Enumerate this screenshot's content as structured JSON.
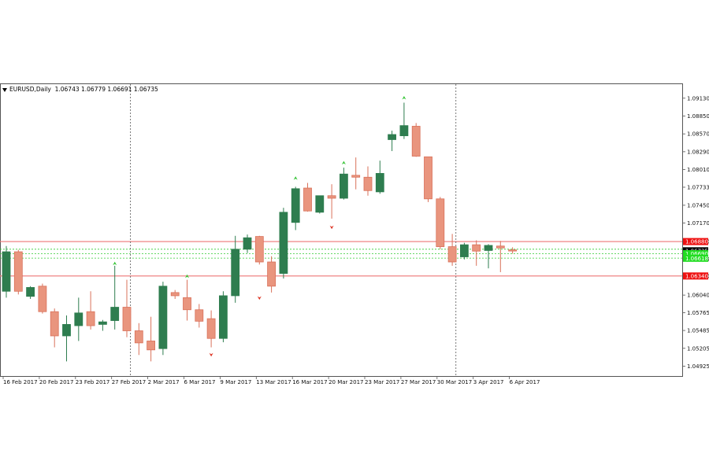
{
  "header": {
    "symbol_timeframe": "EURUSD,Daily",
    "ohlc": "1.06743 1.06779 1.06691 1.06735"
  },
  "colors": {
    "bull": "#2e7d4f",
    "bear": "#e9957e",
    "bear_border": "#d9715a",
    "resistance": "#ee7777",
    "support_line": "#ee7777",
    "green_dotted": "#33cc33",
    "grid_marker": "#555555",
    "up_arrow": "#35c435",
    "down_arrow": "#dd3322",
    "label_red": "#ee1111",
    "label_green": "#22dd22",
    "label_black": "#000000"
  },
  "chart_data": {
    "type": "candlestick",
    "title": "EURUSD,Daily",
    "ylim": [
      1.0477,
      1.0935
    ],
    "y_ticks": [
      "1.09130",
      "1.08850",
      "1.08570",
      "1.08290",
      "1.08010",
      "1.07733",
      "1.07450",
      "1.07170",
      "1.06880",
      "1.06605",
      "1.06340",
      "1.06040",
      "1.05765",
      "1.05485",
      "1.05205",
      "1.04925"
    ],
    "x_tick_labels": [
      "16 Feb 2017",
      "20 Feb 2017",
      "23 Feb 2017",
      "27 Feb 2017",
      "2 Mar 2017",
      "6 Mar 2017",
      "9 Mar 2017",
      "13 Mar 2017",
      "16 Mar 2017",
      "20 Mar 2017",
      "23 Mar 2017",
      "27 Mar 2017",
      "30 Mar 2017",
      "3 Apr 2017",
      "6 Apr 2017"
    ],
    "x_tick_bar_index": [
      0,
      3,
      6,
      9,
      12,
      15,
      18,
      21,
      24,
      27,
      30,
      33,
      36,
      39,
      42
    ],
    "candles": [
      {
        "o": 1.061,
        "h": 1.0681,
        "l": 1.06,
        "c": 1.0672
      },
      {
        "o": 1.0672,
        "h": 1.0675,
        "l": 1.0605,
        "c": 1.061
      },
      {
        "o": 1.0602,
        "h": 1.0618,
        "l": 1.0598,
        "c": 1.0616
      },
      {
        "o": 1.0618,
        "h": 1.0622,
        "l": 1.0575,
        "c": 1.0578
      },
      {
        "o": 1.0578,
        "h": 1.0583,
        "l": 1.0522,
        "c": 1.054
      },
      {
        "o": 1.054,
        "h": 1.0572,
        "l": 1.05,
        "c": 1.0558
      },
      {
        "o": 1.0556,
        "h": 1.06,
        "l": 1.0532,
        "c": 1.0576
      },
      {
        "o": 1.0578,
        "h": 1.061,
        "l": 1.055,
        "c": 1.0556
      },
      {
        "o": 1.0558,
        "h": 1.0565,
        "l": 1.0548,
        "c": 1.0562
      },
      {
        "o": 1.0564,
        "h": 1.065,
        "l": 1.055,
        "c": 1.0585
      },
      {
        "o": 1.0585,
        "h": 1.0628,
        "l": 1.0538,
        "c": 1.0548
      },
      {
        "o": 1.0548,
        "h": 1.056,
        "l": 1.051,
        "c": 1.0529
      },
      {
        "o": 1.0532,
        "h": 1.057,
        "l": 1.05,
        "c": 1.0518
      },
      {
        "o": 1.052,
        "h": 1.0625,
        "l": 1.051,
        "c": 1.0618
      },
      {
        "o": 1.0608,
        "h": 1.0612,
        "l": 1.0598,
        "c": 1.0603
      },
      {
        "o": 1.06,
        "h": 1.0628,
        "l": 1.0564,
        "c": 1.0581
      },
      {
        "o": 1.0581,
        "h": 1.059,
        "l": 1.0553,
        "c": 1.0563
      },
      {
        "o": 1.0567,
        "h": 1.058,
        "l": 1.0522,
        "c": 1.0536
      },
      {
        "o": 1.0536,
        "h": 1.061,
        "l": 1.053,
        "c": 1.0603
      },
      {
        "o": 1.0603,
        "h": 1.0697,
        "l": 1.0592,
        "c": 1.0676
      },
      {
        "o": 1.0676,
        "h": 1.0699,
        "l": 1.067,
        "c": 1.0694
      },
      {
        "o": 1.0696,
        "h": 1.0697,
        "l": 1.0652,
        "c": 1.0656
      },
      {
        "o": 1.0656,
        "h": 1.0665,
        "l": 1.0608,
        "c": 1.0618
      },
      {
        "o": 1.0638,
        "h": 1.0741,
        "l": 1.063,
        "c": 1.0734
      },
      {
        "o": 1.0718,
        "h": 1.0774,
        "l": 1.0706,
        "c": 1.0771
      },
      {
        "o": 1.0772,
        "h": 1.078,
        "l": 1.0735,
        "c": 1.0736
      },
      {
        "o": 1.0734,
        "h": 1.076,
        "l": 1.0732,
        "c": 1.076
      },
      {
        "o": 1.076,
        "h": 1.0778,
        "l": 1.0724,
        "c": 1.0756
      },
      {
        "o": 1.0756,
        "h": 1.0804,
        "l": 1.0754,
        "c": 1.0794
      },
      {
        "o": 1.0792,
        "h": 1.082,
        "l": 1.077,
        "c": 1.0789
      },
      {
        "o": 1.0789,
        "h": 1.0806,
        "l": 1.076,
        "c": 1.0768
      },
      {
        "o": 1.0766,
        "h": 1.0815,
        "l": 1.0763,
        "c": 1.0795
      },
      {
        "o": 1.0848,
        "h": 1.0862,
        "l": 1.083,
        "c": 1.0856
      },
      {
        "o": 1.0854,
        "h": 1.0906,
        "l": 1.0849,
        "c": 1.087
      },
      {
        "o": 1.0869,
        "h": 1.0874,
        "l": 1.0821,
        "c": 1.0822
      },
      {
        "o": 1.0821,
        "h": 1.0821,
        "l": 1.075,
        "c": 1.0755
      },
      {
        "o": 1.0755,
        "h": 1.0758,
        "l": 1.0676,
        "c": 1.068
      },
      {
        "o": 1.068,
        "h": 1.07,
        "l": 1.065,
        "c": 1.0656
      },
      {
        "o": 1.0664,
        "h": 1.0686,
        "l": 1.066,
        "c": 1.0683
      },
      {
        "o": 1.0683,
        "h": 1.069,
        "l": 1.065,
        "c": 1.0673
      },
      {
        "o": 1.0674,
        "h": 1.0684,
        "l": 1.0646,
        "c": 1.0682
      },
      {
        "o": 1.0681,
        "h": 1.0689,
        "l": 1.064,
        "c": 1.0678
      },
      {
        "o": 1.0675,
        "h": 1.0679,
        "l": 1.0669,
        "c": 1.0674
      }
    ],
    "horizontal_lines": [
      {
        "value": 1.0688,
        "style": "solid",
        "color_key": "resistance"
      },
      {
        "value": 1.0634,
        "style": "solid",
        "color_key": "support_line"
      },
      {
        "value": 1.0676,
        "style": "dotted",
        "color_key": "green_dotted"
      },
      {
        "value": 1.0669,
        "style": "dotted",
        "color_key": "green_dotted"
      },
      {
        "value": 1.0662,
        "style": "dotted",
        "color_key": "green_dotted"
      }
    ],
    "price_labels": [
      {
        "text": "1.06880",
        "value": 1.0688,
        "bg_key": "label_red",
        "fg": "#ffffff"
      },
      {
        "text": "1.06735",
        "value": 1.06735,
        "bg_key": "label_black",
        "fg": "#ffffff"
      },
      {
        "text": "1.06690",
        "value": 1.0669,
        "bg_key": "label_green",
        "fg": "#ffffff"
      },
      {
        "text": "1.06618",
        "value": 1.06618,
        "bg_key": "label_green",
        "fg": "#ffffff"
      },
      {
        "text": "1.06340",
        "value": 1.0634,
        "bg_key": "label_red",
        "fg": "#ffffff"
      }
    ],
    "vertical_separators_after_bar": [
      10,
      37
    ],
    "fractal_up": [
      {
        "bar": 9,
        "value": 1.0654
      },
      {
        "bar": 15,
        "value": 1.0634
      },
      {
        "bar": 24,
        "value": 1.0788
      },
      {
        "bar": 28,
        "value": 1.0812
      },
      {
        "bar": 33,
        "value": 1.0914
      }
    ],
    "fractal_down": [
      {
        "bar": 17,
        "value": 1.051
      },
      {
        "bar": 21,
        "value": 1.0599
      },
      {
        "bar": 27,
        "value": 1.071
      }
    ],
    "grid": false,
    "legend": "none"
  }
}
